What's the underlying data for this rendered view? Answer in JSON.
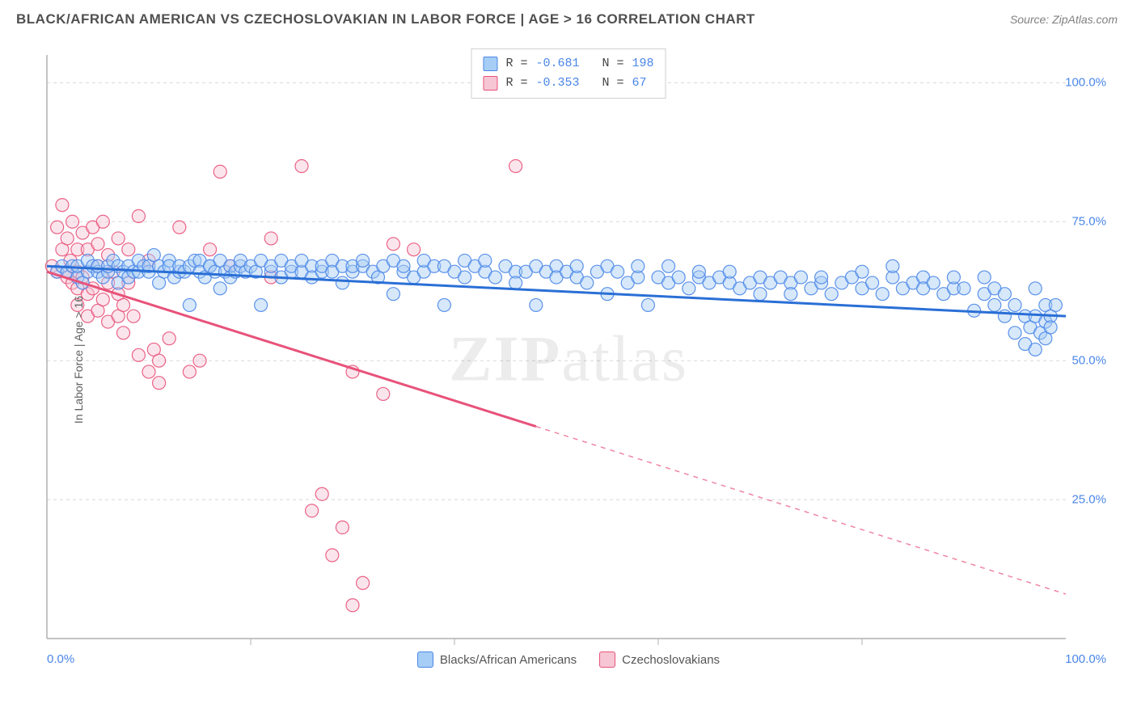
{
  "header": {
    "title": "BLACK/AFRICAN AMERICAN VS CZECHOSLOVAKIAN IN LABOR FORCE | AGE > 16 CORRELATION CHART",
    "source_prefix": "Source: ",
    "source_name": "ZipAtlas.com"
  },
  "chart": {
    "type": "scatter",
    "y_axis_label": "In Labor Force | Age > 16",
    "xlim": [
      0,
      100
    ],
    "ylim": [
      0,
      105
    ],
    "x_ticks": [
      "0.0%",
      "100.0%"
    ],
    "y_ticks": [
      {
        "value": 25,
        "label": "25.0%"
      },
      {
        "value": 50,
        "label": "50.0%"
      },
      {
        "value": 75,
        "label": "75.0%"
      },
      {
        "value": 100,
        "label": "100.0%"
      }
    ],
    "x_minor_ticks": [
      20,
      40,
      60,
      80
    ],
    "grid_color": "#d8d8d8",
    "axis_color": "#b0b0b0",
    "background_color": "#ffffff",
    "marker_radius": 8,
    "marker_opacity": 0.45,
    "line_width": 3,
    "watermark": "ZIPatlas",
    "stats_box": {
      "rows": [
        {
          "swatch_fill": "#a6cdf5",
          "swatch_stroke": "#4a86e8",
          "r_label": "R =",
          "r_value": "-0.681",
          "n_label": "N =",
          "n_value": "198"
        },
        {
          "swatch_fill": "#f7c6d4",
          "swatch_stroke": "#e8527a",
          "r_label": "R =",
          "r_value": "-0.353",
          "n_label": "N =",
          "n_value": " 67"
        }
      ]
    },
    "bottom_legend": [
      {
        "swatch_fill": "#a6cdf5",
        "swatch_stroke": "#4a86e8",
        "label": "Blacks/African Americans"
      },
      {
        "swatch_fill": "#f7c6d4",
        "swatch_stroke": "#e8527a",
        "label": "Czechoslovakians"
      }
    ],
    "series": [
      {
        "name": "blue",
        "fill": "#a6cdf5",
        "stroke": "#4a86e8",
        "line_color": "#2a6fd6",
        "trend": {
          "x1": 0,
          "y1": 67,
          "x2": 100,
          "y2": 58,
          "solid_to_x": 100
        },
        "points": [
          [
            1,
            66
          ],
          [
            1.5,
            67
          ],
          [
            2,
            66
          ],
          [
            2.5,
            67
          ],
          [
            3,
            65
          ],
          [
            3,
            67
          ],
          [
            3.5,
            64
          ],
          [
            4,
            66
          ],
          [
            4,
            68
          ],
          [
            4.5,
            67
          ],
          [
            5,
            66
          ],
          [
            5,
            67
          ],
          [
            5.5,
            65
          ],
          [
            6,
            66
          ],
          [
            6,
            67
          ],
          [
            6.5,
            68
          ],
          [
            7,
            64
          ],
          [
            7,
            67
          ],
          [
            7.5,
            66
          ],
          [
            8,
            67
          ],
          [
            8,
            65
          ],
          [
            8.5,
            66
          ],
          [
            9,
            66
          ],
          [
            9,
            68
          ],
          [
            9.5,
            67
          ],
          [
            10,
            66
          ],
          [
            10,
            67
          ],
          [
            10.5,
            69
          ],
          [
            11,
            64
          ],
          [
            11,
            67
          ],
          [
            11.5,
            66
          ],
          [
            12,
            68
          ],
          [
            12,
            67
          ],
          [
            12.5,
            65
          ],
          [
            13,
            66
          ],
          [
            13,
            67
          ],
          [
            13.5,
            66
          ],
          [
            14,
            60
          ],
          [
            14,
            67
          ],
          [
            14.5,
            68
          ],
          [
            15,
            68
          ],
          [
            15,
            66
          ],
          [
            15.5,
            65
          ],
          [
            16,
            67
          ],
          [
            16,
            67
          ],
          [
            16.5,
            66
          ],
          [
            17,
            68
          ],
          [
            17,
            63
          ],
          [
            17.5,
            66
          ],
          [
            18,
            67
          ],
          [
            18,
            65
          ],
          [
            18.5,
            66
          ],
          [
            19,
            67
          ],
          [
            19,
            68
          ],
          [
            19.5,
            66
          ],
          [
            20,
            67
          ],
          [
            20.5,
            66
          ],
          [
            21,
            68
          ],
          [
            21,
            60
          ],
          [
            22,
            66
          ],
          [
            22,
            67
          ],
          [
            23,
            68
          ],
          [
            23,
            65
          ],
          [
            24,
            66
          ],
          [
            24,
            67
          ],
          [
            25,
            66
          ],
          [
            25,
            68
          ],
          [
            26,
            67
          ],
          [
            26,
            65
          ],
          [
            27,
            66
          ],
          [
            27,
            67
          ],
          [
            28,
            68
          ],
          [
            28,
            66
          ],
          [
            29,
            64
          ],
          [
            29,
            67
          ],
          [
            30,
            66
          ],
          [
            30,
            67
          ],
          [
            31,
            67
          ],
          [
            31,
            68
          ],
          [
            32,
            66
          ],
          [
            32.5,
            65
          ],
          [
            33,
            67
          ],
          [
            34,
            62
          ],
          [
            34,
            68
          ],
          [
            35,
            66
          ],
          [
            35,
            67
          ],
          [
            36,
            65
          ],
          [
            37,
            66
          ],
          [
            37,
            68
          ],
          [
            38,
            67
          ],
          [
            39,
            60
          ],
          [
            39,
            67
          ],
          [
            40,
            66
          ],
          [
            41,
            68
          ],
          [
            41,
            65
          ],
          [
            42,
            67
          ],
          [
            43,
            66
          ],
          [
            43,
            68
          ],
          [
            44,
            65
          ],
          [
            45,
            67
          ],
          [
            46,
            66
          ],
          [
            46,
            64
          ],
          [
            47,
            66
          ],
          [
            48,
            60
          ],
          [
            48,
            67
          ],
          [
            49,
            66
          ],
          [
            50,
            67
          ],
          [
            50,
            65
          ],
          [
            51,
            66
          ],
          [
            52,
            65
          ],
          [
            52,
            67
          ],
          [
            53,
            64
          ],
          [
            54,
            66
          ],
          [
            55,
            67
          ],
          [
            55,
            62
          ],
          [
            56,
            66
          ],
          [
            57,
            64
          ],
          [
            58,
            65
          ],
          [
            58,
            67
          ],
          [
            59,
            60
          ],
          [
            60,
            65
          ],
          [
            61,
            64
          ],
          [
            61,
            67
          ],
          [
            62,
            65
          ],
          [
            63,
            63
          ],
          [
            64,
            65
          ],
          [
            64,
            66
          ],
          [
            65,
            64
          ],
          [
            66,
            65
          ],
          [
            67,
            64
          ],
          [
            67,
            66
          ],
          [
            68,
            63
          ],
          [
            69,
            64
          ],
          [
            70,
            65
          ],
          [
            70,
            62
          ],
          [
            71,
            64
          ],
          [
            72,
            65
          ],
          [
            73,
            64
          ],
          [
            73,
            62
          ],
          [
            74,
            65
          ],
          [
            75,
            63
          ],
          [
            76,
            64
          ],
          [
            76,
            65
          ],
          [
            77,
            62
          ],
          [
            78,
            64
          ],
          [
            79,
            65
          ],
          [
            80,
            63
          ],
          [
            80,
            66
          ],
          [
            81,
            64
          ],
          [
            82,
            62
          ],
          [
            83,
            65
          ],
          [
            83,
            67
          ],
          [
            84,
            63
          ],
          [
            85,
            64
          ],
          [
            86,
            65
          ],
          [
            86,
            63
          ],
          [
            87,
            64
          ],
          [
            88,
            62
          ],
          [
            89,
            63
          ],
          [
            89,
            65
          ],
          [
            90,
            63
          ],
          [
            91,
            59
          ],
          [
            92,
            62
          ],
          [
            92,
            65
          ],
          [
            93,
            60
          ],
          [
            93,
            63
          ],
          [
            94,
            58
          ],
          [
            94,
            62
          ],
          [
            95,
            55
          ],
          [
            95,
            60
          ],
          [
            96,
            53
          ],
          [
            96,
            58
          ],
          [
            96.5,
            56
          ],
          [
            97,
            52
          ],
          [
            97,
            63
          ],
          [
            97,
            58
          ],
          [
            97.5,
            55
          ],
          [
            98,
            57
          ],
          [
            98,
            60
          ],
          [
            98,
            54
          ],
          [
            98.5,
            58
          ],
          [
            98.5,
            56
          ],
          [
            99,
            60
          ]
        ]
      },
      {
        "name": "pink",
        "fill": "#f7c6d4",
        "stroke": "#e8527a",
        "line_color": "#e8527a",
        "trend": {
          "x1": 0,
          "y1": 66,
          "x2": 100,
          "y2": 8,
          "solid_to_x": 48
        },
        "points": [
          [
            0.5,
            67
          ],
          [
            1,
            66
          ],
          [
            1,
            74
          ],
          [
            1.5,
            70
          ],
          [
            1.5,
            78
          ],
          [
            2,
            66
          ],
          [
            2,
            65
          ],
          [
            2,
            72
          ],
          [
            2.3,
            68
          ],
          [
            2.5,
            64
          ],
          [
            2.5,
            75
          ],
          [
            3,
            63
          ],
          [
            3,
            66
          ],
          [
            3,
            70
          ],
          [
            3,
            60
          ],
          [
            3.5,
            73
          ],
          [
            3.5,
            65
          ],
          [
            4,
            62
          ],
          [
            4,
            58
          ],
          [
            4,
            70
          ],
          [
            4.5,
            74
          ],
          [
            4.5,
            63
          ],
          [
            5,
            67
          ],
          [
            5,
            59
          ],
          [
            5,
            71
          ],
          [
            5.5,
            61
          ],
          [
            5.5,
            75
          ],
          [
            6,
            64
          ],
          [
            6,
            57
          ],
          [
            6,
            69
          ],
          [
            6.5,
            66
          ],
          [
            7,
            58
          ],
          [
            7,
            62
          ],
          [
            7,
            72
          ],
          [
            7.5,
            60
          ],
          [
            7.5,
            55
          ],
          [
            8,
            64
          ],
          [
            8,
            70
          ],
          [
            8.5,
            58
          ],
          [
            9,
            51
          ],
          [
            9,
            76
          ],
          [
            10,
            48
          ],
          [
            10,
            68
          ],
          [
            10.5,
            52
          ],
          [
            11,
            46
          ],
          [
            11,
            50
          ],
          [
            12,
            54
          ],
          [
            13,
            74
          ],
          [
            14,
            48
          ],
          [
            15,
            50
          ],
          [
            16,
            70
          ],
          [
            17,
            84
          ],
          [
            18,
            67
          ],
          [
            22,
            65
          ],
          [
            22,
            72
          ],
          [
            25,
            85
          ],
          [
            26,
            23
          ],
          [
            27,
            26
          ],
          [
            28,
            15
          ],
          [
            29,
            20
          ],
          [
            30,
            6
          ],
          [
            30,
            48
          ],
          [
            31,
            10
          ],
          [
            33,
            44
          ],
          [
            34,
            71
          ],
          [
            36,
            70
          ],
          [
            46,
            85
          ]
        ]
      }
    ]
  }
}
